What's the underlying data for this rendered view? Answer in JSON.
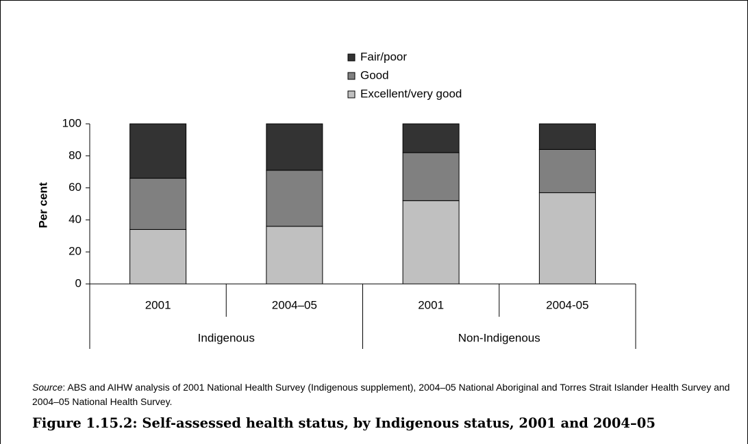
{
  "chart_data": {
    "type": "bar",
    "stacked": true,
    "categories": [
      "2001",
      "2004–05",
      "2001",
      "2004-05"
    ],
    "groups": [
      {
        "label": "Indigenous",
        "categories": [
          "2001",
          "2004–05"
        ]
      },
      {
        "label": "Non-Indigenous",
        "categories": [
          "2001",
          "2004-05"
        ]
      }
    ],
    "series": [
      {
        "name": "Excellent/very good",
        "color": "#c0c0c0",
        "values": [
          34,
          36,
          52,
          57
        ]
      },
      {
        "name": "Good",
        "color": "#808080",
        "values": [
          32,
          35,
          30,
          27
        ]
      },
      {
        "name": "Fair/poor",
        "color": "#333333",
        "values": [
          34,
          29,
          18,
          16
        ]
      }
    ],
    "legend": [
      "Fair/poor",
      "Good",
      "Excellent/very good"
    ],
    "legend_position": "top-center",
    "ylabel": "Per cent",
    "ylim": [
      0,
      100
    ],
    "yticks": [
      "0",
      "20",
      "40",
      "60",
      "80",
      "100"
    ],
    "grid": false
  },
  "source": {
    "label": "Source",
    "text": ": ABS and AIHW analysis of 2001 National Health Survey (Indigenous supplement), 2004–05 National Aboriginal and Torres Strait Islander Health Survey and 2004–05 National Health Survey."
  },
  "caption": "Figure 1.15.2: Self-assessed health status, by Indigenous status, 2001 and 2004–05"
}
